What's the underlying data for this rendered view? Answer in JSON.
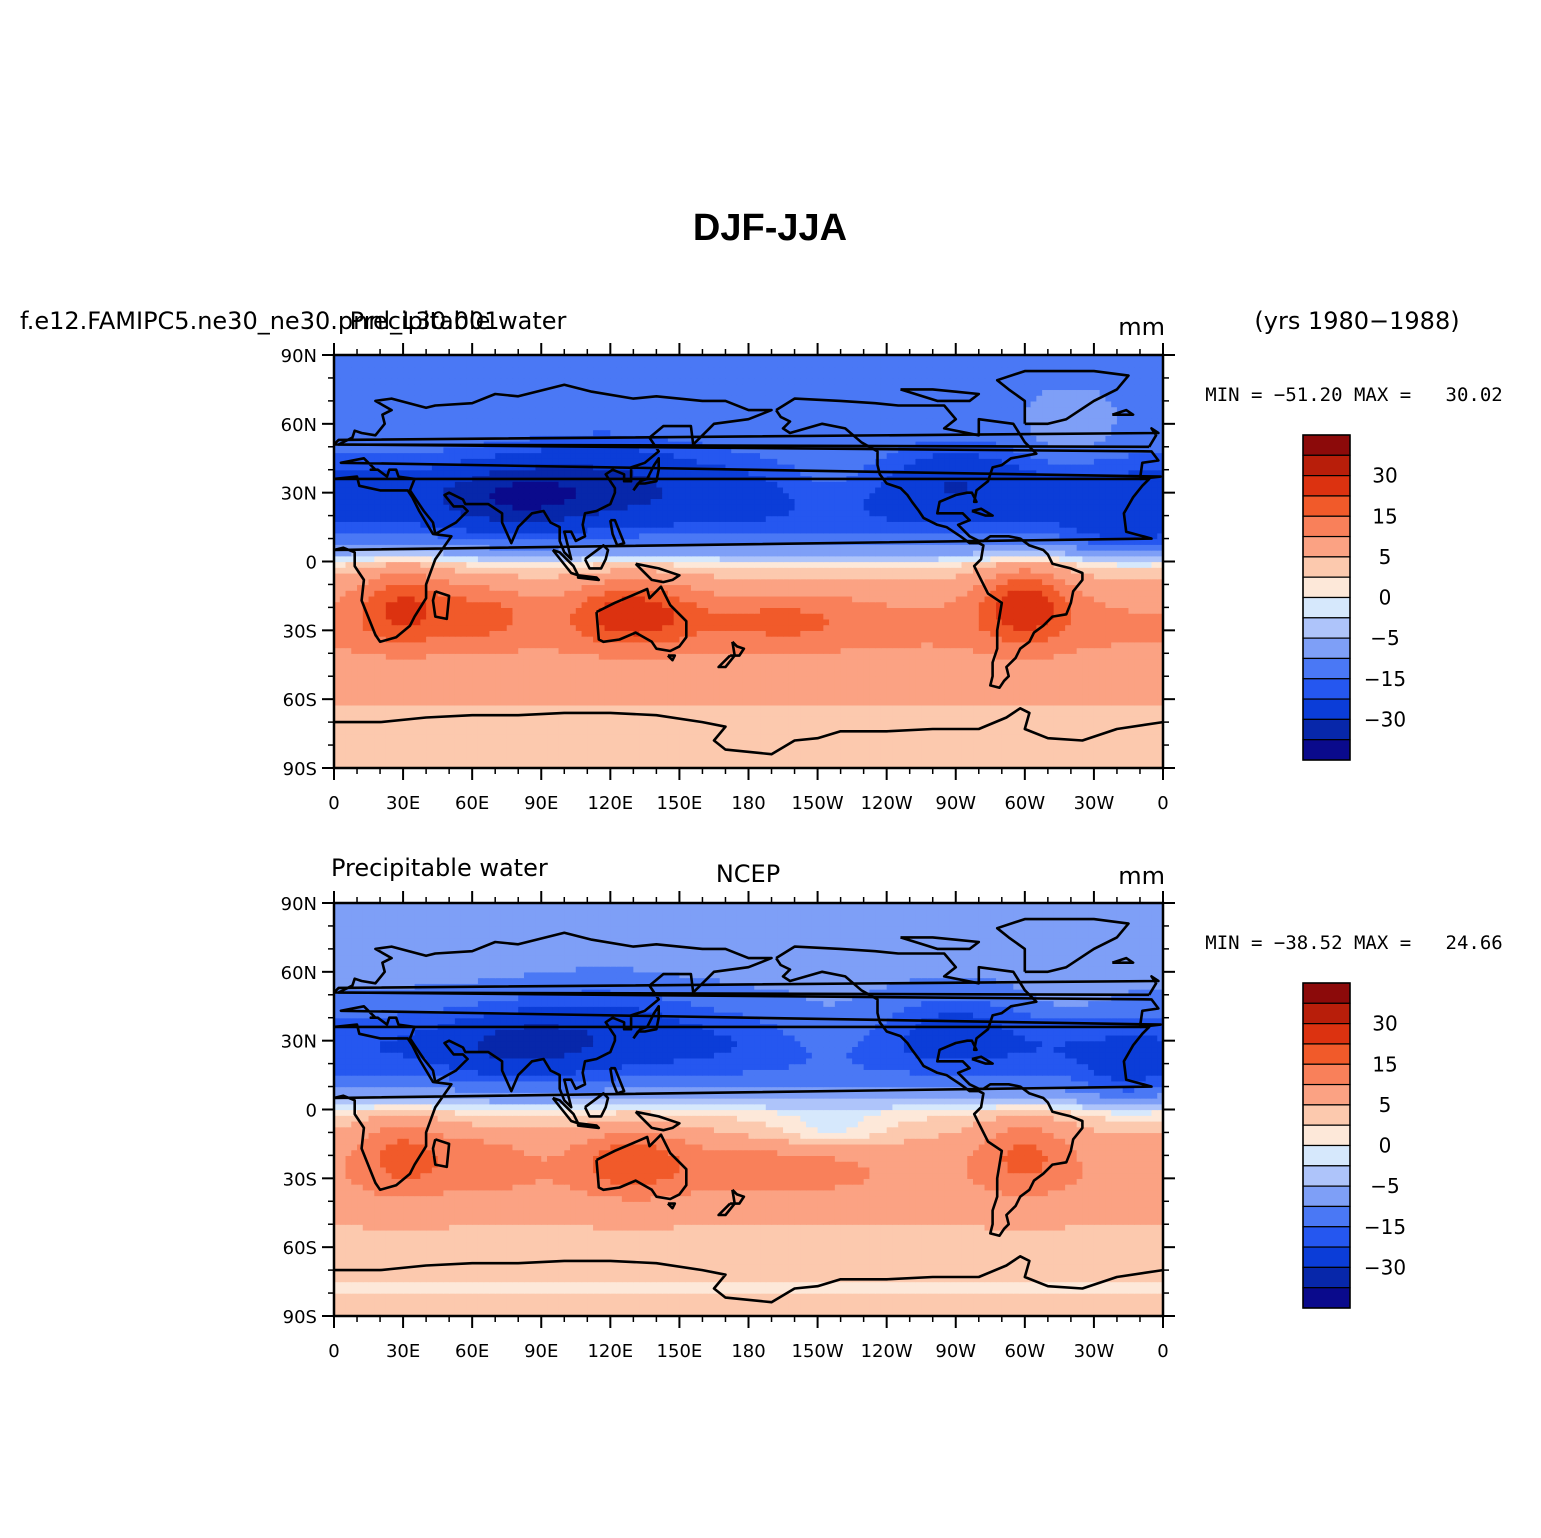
{
  "figure": {
    "title": "DJF-JJA"
  },
  "colors": {
    "levels": [
      "#0a0a8c",
      "#0727aa",
      "#0b3dd8",
      "#2557f0",
      "#4a78f5",
      "#7e9ff7",
      "#aec4fa",
      "#d6e8fc",
      "#fde8d9",
      "#fcc9ae",
      "#fba283",
      "#f9805a",
      "#f15a2a",
      "#dc3210",
      "#b81e0a",
      "#8c0a0a"
    ],
    "coast": "#000000"
  },
  "chart_data": [
    {
      "type": "heatmap",
      "left_label": "f.e12.FAMIPC5.ne30_ne30.pnnl_L30.001",
      "center_label": "Precipitable water",
      "unit_label": "mm",
      "right_top_label": "(yrs 1980−1988)",
      "stats": "MIN = −51.20 MAX =   30.02",
      "min": -51.2,
      "max": 30.02,
      "x_ticks": [
        "0",
        "30E",
        "60E",
        "90E",
        "120E",
        "150E",
        "180",
        "150W",
        "120W",
        "90W",
        "60W",
        "30W",
        "0"
      ],
      "y_ticks": [
        "90N",
        "60N",
        "30N",
        "0",
        "30S",
        "60S",
        "90S"
      ],
      "xlim": [
        0,
        360
      ],
      "ylim": [
        -90,
        90
      ],
      "colorbar_labels": [
        "30",
        "15",
        "5",
        "0",
        "−5",
        "−15",
        "−30"
      ],
      "contour_levels": [
        -40,
        -30,
        -20,
        -15,
        -10,
        -5,
        -2,
        0,
        2,
        5,
        10,
        15,
        20,
        30,
        40
      ]
    },
    {
      "type": "heatmap",
      "left_label": "Precipitable water",
      "center_label": "NCEP",
      "unit_label": "mm",
      "stats": "MIN = −38.52 MAX =   24.66",
      "min": -38.52,
      "max": 24.66,
      "x_ticks": [
        "0",
        "30E",
        "60E",
        "90E",
        "120E",
        "150E",
        "180",
        "150W",
        "120W",
        "90W",
        "60W",
        "30W",
        "0"
      ],
      "y_ticks": [
        "90N",
        "60N",
        "30N",
        "0",
        "30S",
        "60S",
        "90S"
      ],
      "xlim": [
        0,
        360
      ],
      "ylim": [
        -90,
        90
      ],
      "colorbar_labels": [
        "30",
        "15",
        "5",
        "0",
        "−5",
        "−15",
        "−30"
      ],
      "contour_levels": [
        -40,
        -30,
        -20,
        -15,
        -10,
        -5,
        -2,
        0,
        2,
        5,
        10,
        15,
        20,
        30,
        40
      ]
    }
  ]
}
